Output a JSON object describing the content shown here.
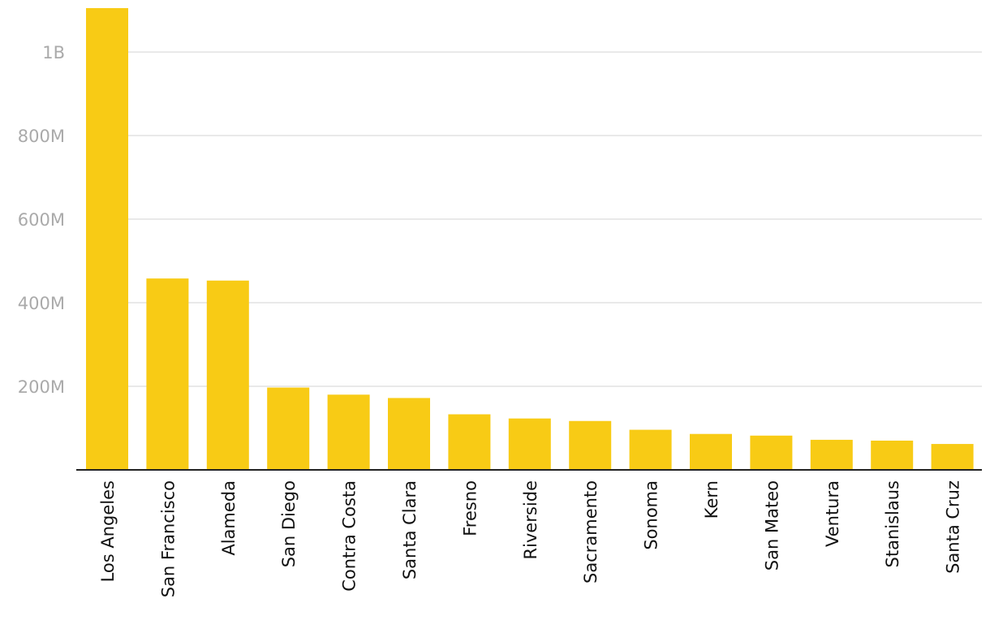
{
  "chart_data": {
    "type": "bar",
    "title": "",
    "xlabel": "",
    "ylabel": "",
    "categories": [
      "Los Angeles",
      "San Francisco",
      "Alameda",
      "San Diego",
      "Contra Costa",
      "Santa Clara",
      "Fresno",
      "Riverside",
      "Sacramento",
      "Sonoma",
      "Kern",
      "San Mateo",
      "Ventura",
      "Stanislaus",
      "Santa Cruz"
    ],
    "values": [
      1105000000,
      458000000,
      453000000,
      197000000,
      180000000,
      172000000,
      133000000,
      123000000,
      117000000,
      96000000,
      86000000,
      82000000,
      72000000,
      70000000,
      62000000
    ],
    "yticks": [
      {
        "value": 200000000,
        "label": "200M"
      },
      {
        "value": 400000000,
        "label": "400M"
      },
      {
        "value": 600000000,
        "label": "600M"
      },
      {
        "value": 800000000,
        "label": "800M"
      },
      {
        "value": 1000000000,
        "label": "1B"
      }
    ],
    "ylim": [
      0,
      1105000000
    ],
    "grid": true,
    "colors": {
      "bar": "#f8cb15",
      "grid": "#e2e2e2",
      "axis": "#222222",
      "tick_text": "#aaaaaa",
      "category_text": "#111111"
    }
  }
}
